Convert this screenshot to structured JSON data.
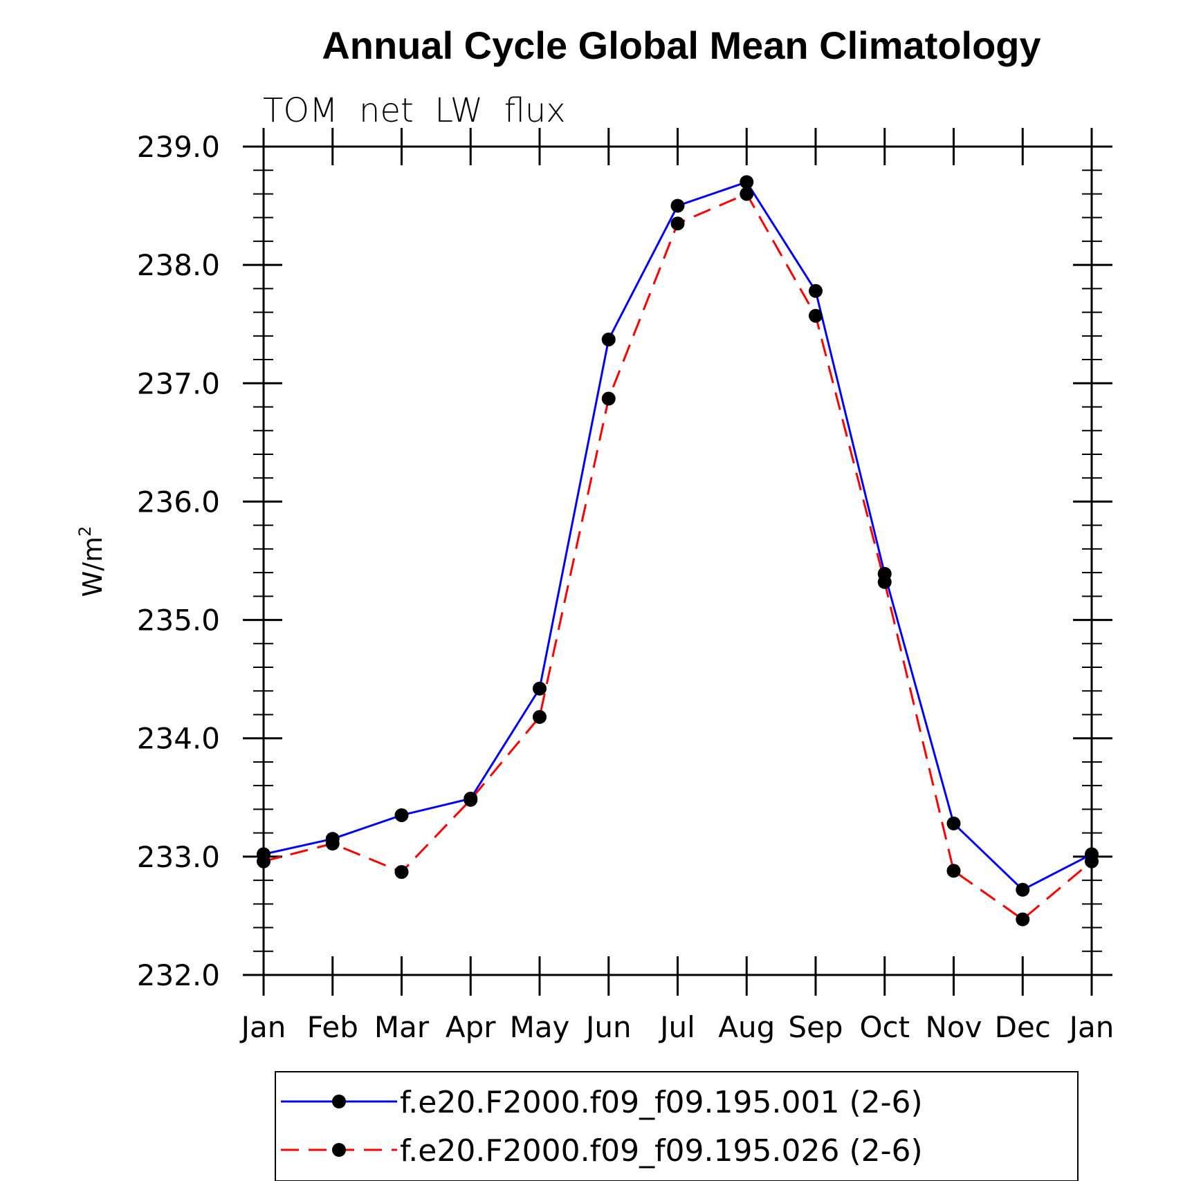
{
  "chart_data": {
    "type": "line",
    "title": "Annual Cycle Global Mean Climatology",
    "subtitle": "TOM  net  LW  flux",
    "ylabel": "W/m",
    "ylabel_superscript": "2",
    "xlabel": "",
    "categories": [
      "Jan",
      "Feb",
      "Mar",
      "Apr",
      "May",
      "Jun",
      "Jul",
      "Aug",
      "Sep",
      "Oct",
      "Nov",
      "Dec",
      "Jan"
    ],
    "ylim": [
      232.0,
      239.0
    ],
    "yticks": [
      "232.0",
      "233.0",
      "234.0",
      "235.0",
      "236.0",
      "237.0",
      "238.0",
      "239.0"
    ],
    "grid": false,
    "legend_position": "bottom",
    "series": [
      {
        "name": "f.e20.F2000.f09_f09.195.001 (2-6)",
        "color": "#0000ff",
        "line_style": "solid",
        "marker": "circle",
        "values": [
          233.02,
          233.15,
          233.35,
          233.49,
          234.42,
          237.37,
          238.5,
          238.7,
          237.78,
          235.39,
          233.28,
          232.72,
          233.02
        ]
      },
      {
        "name": "f.e20.F2000.f09_f09.195.026 (2-6)",
        "color": "#ff0000",
        "line_style": "dashed",
        "marker": "circle",
        "values": [
          232.96,
          233.11,
          232.87,
          233.48,
          234.18,
          236.87,
          238.35,
          238.6,
          237.57,
          235.32,
          232.88,
          232.47,
          232.96
        ]
      }
    ]
  }
}
